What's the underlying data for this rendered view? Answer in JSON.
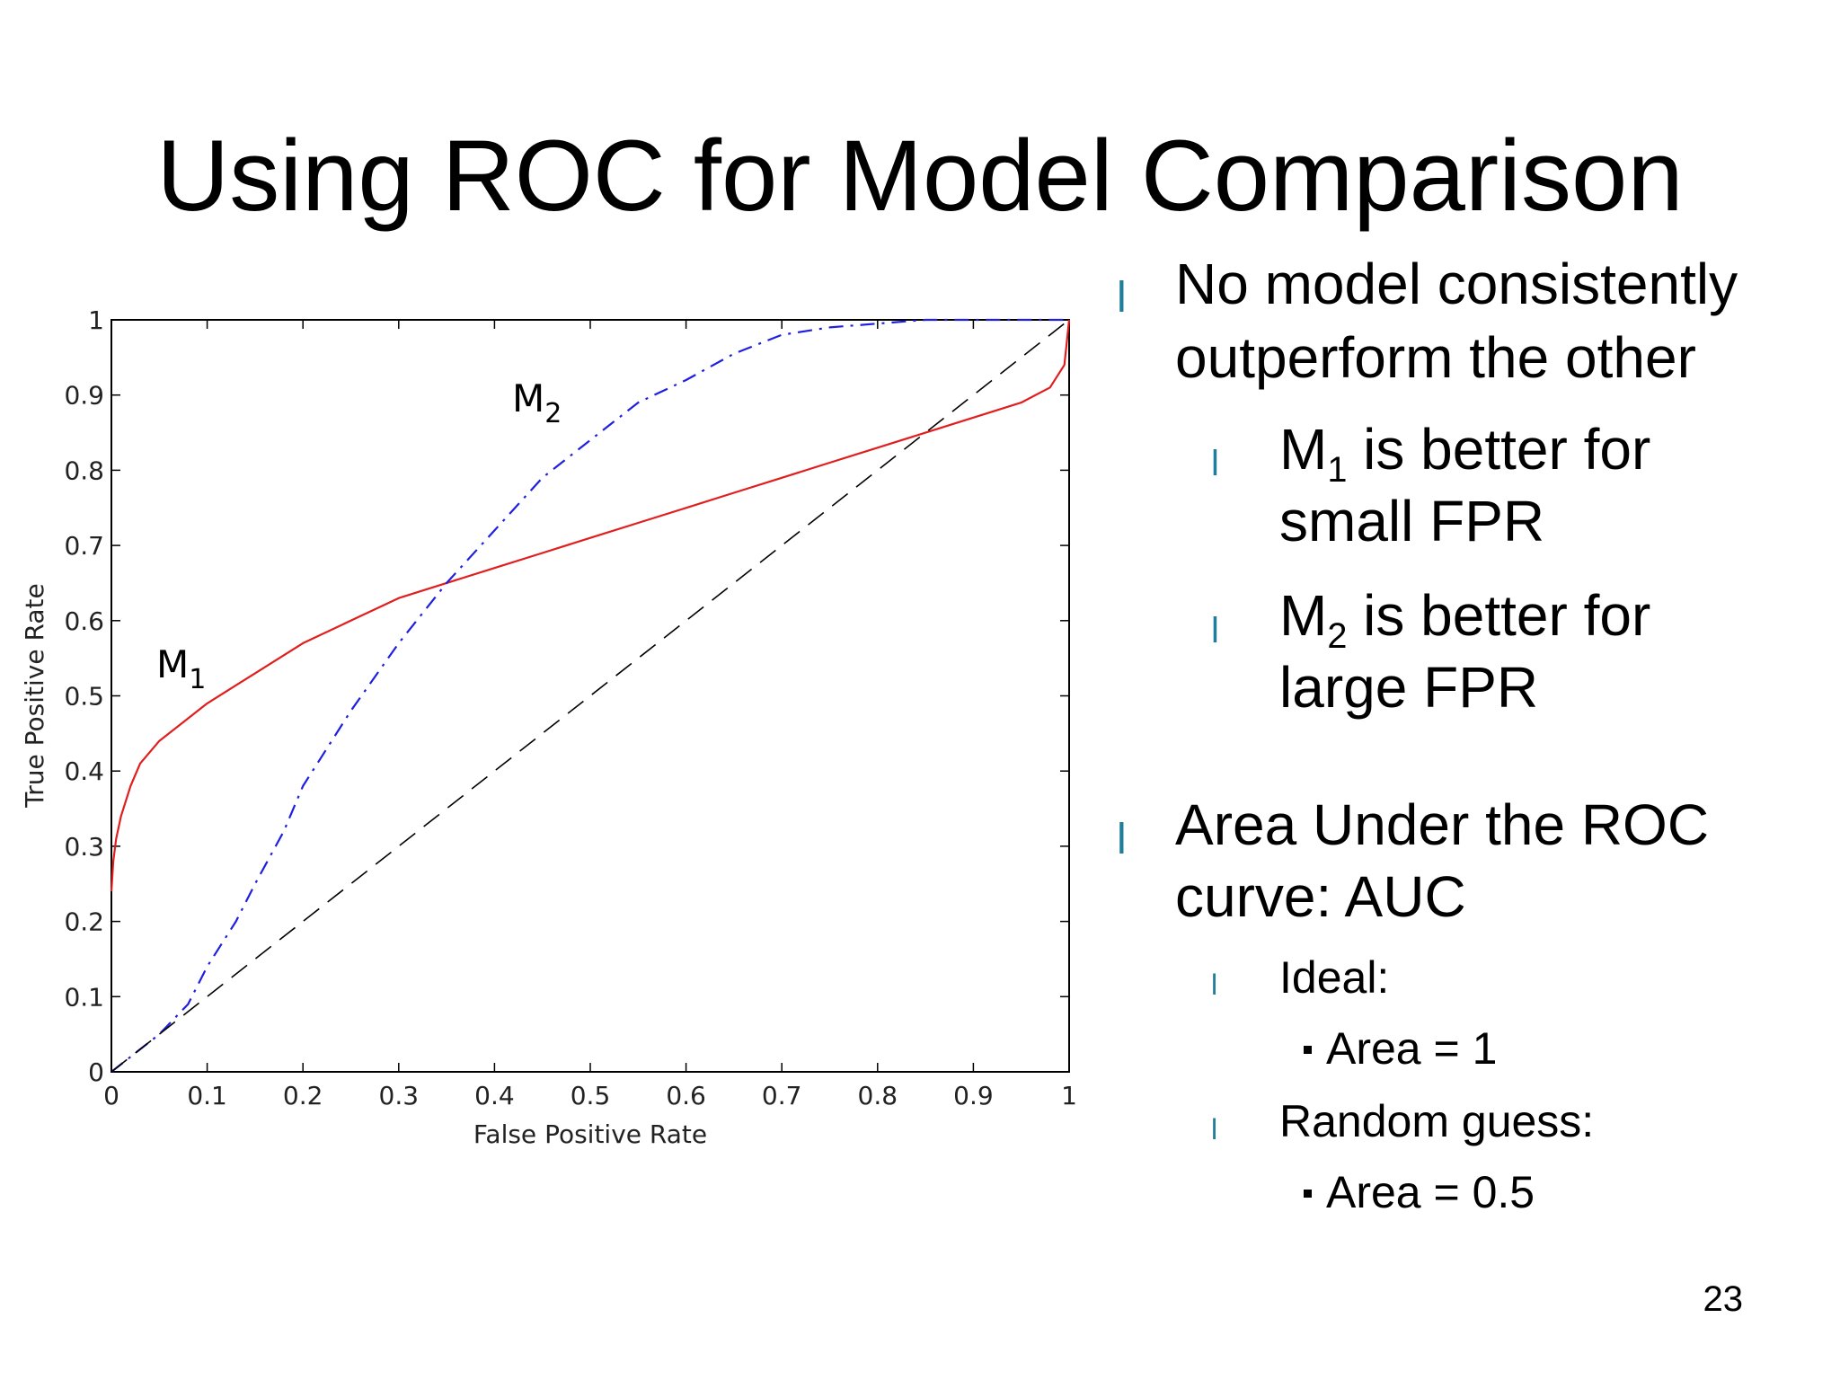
{
  "slide": {
    "title": "Using ROC for Model Comparison",
    "page_number": "23"
  },
  "bullets": [
    {
      "level": 1,
      "lines": [
        "No model consistently",
        "outperform the other"
      ]
    },
    {
      "level": 2,
      "model": "M",
      "sub": "1",
      "rest": " is better for",
      "line2": "small FPR"
    },
    {
      "level": 2,
      "model": "M",
      "sub": "2",
      "rest": " is better for",
      "line2": "large FPR"
    },
    {
      "level": 1,
      "lines": [
        "Area Under the ROC",
        "curve: AUC"
      ]
    },
    {
      "level": 3,
      "text": "Ideal:"
    },
    {
      "level": 4,
      "text": "Area = 1"
    },
    {
      "level": 3,
      "text": "Random guess:"
    },
    {
      "level": 4,
      "text": "Area = 0.5"
    }
  ],
  "colors": {
    "bullet_mark": "#1f7f9a",
    "m1_curve": "#e11e1e",
    "m2_curve": "#1f1fe0",
    "diagonal": "#000000"
  },
  "chart_data": {
    "type": "line",
    "xlabel": "False Positive Rate",
    "ylabel": "True Positive Rate",
    "xlim": [
      0,
      1
    ],
    "ylim": [
      0,
      1
    ],
    "xticks": [
      "0",
      "0.1",
      "0.2",
      "0.3",
      "0.4",
      "0.5",
      "0.6",
      "0.7",
      "0.8",
      "0.9",
      "1"
    ],
    "yticks": [
      "0",
      "0.1",
      "0.2",
      "0.3",
      "0.4",
      "0.5",
      "0.6",
      "0.7",
      "0.8",
      "0.9",
      "1"
    ],
    "grid": false,
    "series": [
      {
        "name": "M1",
        "label_main": "M",
        "label_sub": "1",
        "style": "solid",
        "color": "#e11e1e",
        "x": [
          0,
          0.002,
          0.005,
          0.01,
          0.02,
          0.03,
          0.05,
          0.08,
          0.1,
          0.15,
          0.2,
          0.25,
          0.3,
          0.35,
          0.4,
          0.45,
          0.5,
          0.55,
          0.6,
          0.65,
          0.7,
          0.75,
          0.8,
          0.85,
          0.9,
          0.95,
          0.98,
          0.995,
          1.0
        ],
        "y": [
          0.24,
          0.28,
          0.31,
          0.34,
          0.38,
          0.41,
          0.44,
          0.47,
          0.49,
          0.53,
          0.57,
          0.6,
          0.63,
          0.65,
          0.67,
          0.69,
          0.71,
          0.73,
          0.75,
          0.77,
          0.79,
          0.81,
          0.83,
          0.85,
          0.87,
          0.89,
          0.91,
          0.94,
          1.0
        ]
      },
      {
        "name": "M2",
        "label_main": "M",
        "label_sub": "2",
        "style": "dashdot",
        "color": "#1f1fe0",
        "x": [
          0,
          0.05,
          0.08,
          0.1,
          0.13,
          0.15,
          0.18,
          0.2,
          0.25,
          0.3,
          0.35,
          0.4,
          0.45,
          0.5,
          0.55,
          0.6,
          0.65,
          0.7,
          0.75,
          0.8,
          0.85,
          0.9,
          1.0
        ],
        "y": [
          0,
          0.05,
          0.09,
          0.14,
          0.2,
          0.25,
          0.32,
          0.38,
          0.48,
          0.57,
          0.65,
          0.72,
          0.79,
          0.84,
          0.89,
          0.92,
          0.955,
          0.98,
          0.99,
          0.995,
          1.0,
          1.0,
          1.0
        ]
      },
      {
        "name": "",
        "style": "dashed",
        "color": "#000000",
        "x": [
          0,
          1
        ],
        "y": [
          0,
          1
        ]
      }
    ]
  }
}
